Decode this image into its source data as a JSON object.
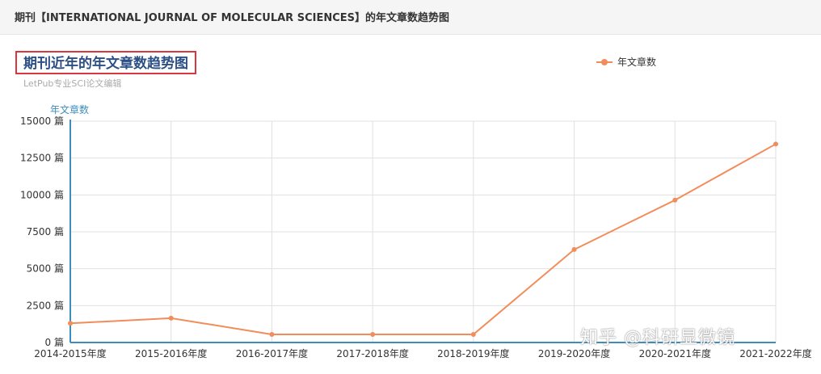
{
  "header": {
    "title": "期刊【INTERNATIONAL JOURNAL OF MOLECULAR SCIENCES】的年文章数趋势图"
  },
  "watermark": "知乎 @科研显微镜",
  "colors": {
    "line": "#f28c5a",
    "axis": "#3c8dbc",
    "grid": "#e0e0e0",
    "title": "#2c4f86",
    "highlight_border": "#d9363e"
  },
  "chart_data": {
    "type": "line",
    "title": "期刊近年的年文章数趋势图",
    "subtitle": "LetPub专业SCI论文编辑",
    "ylabel": "年文章数",
    "y_unit": "篇",
    "ylim": [
      0,
      15000
    ],
    "y_ticks": [
      0,
      2500,
      5000,
      7500,
      10000,
      12500,
      15000
    ],
    "y_tick_labels": [
      "0 篇",
      "2500 篇",
      "5000 篇",
      "7500 篇",
      "10000 篇",
      "12500 篇",
      "15000 篇"
    ],
    "grid": true,
    "legend_position": "top-right",
    "categories": [
      "2014-2015年度",
      "2015-2016年度",
      "2016-2017年度",
      "2017-2018年度",
      "2018-2019年度",
      "2019-2020年度",
      "2020-2021年度",
      "2021-2022年度"
    ],
    "series": [
      {
        "name": "年文章数",
        "values": [
          1300,
          1650,
          550,
          550,
          550,
          6300,
          9650,
          13450
        ]
      }
    ]
  }
}
